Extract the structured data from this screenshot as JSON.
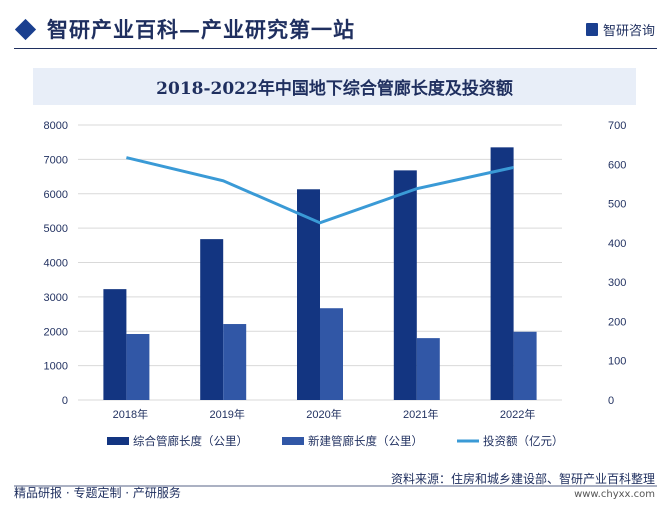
{
  "header": {
    "title": "智研产业百科—产业研究第一站",
    "logo_text": "智研咨询"
  },
  "footer": {
    "left": "精品研报 · 专题定制 · 产研服务",
    "source": "资料来源：住房和城乡建设部、智研产业百科整理",
    "url": "www.chyxx.com"
  },
  "colors": {
    "dark_bar": "#133581",
    "light_bar": "#3157a6",
    "line": "#3a9ad6"
  },
  "chart_data": {
    "type": "bar+line",
    "title": "2018-2022年中国地下综合管廊长度及投资额",
    "categories": [
      "2018年",
      "2019年",
      "2020年",
      "2021年",
      "2022年"
    ],
    "y_left": {
      "range": [
        0,
        8000
      ],
      "ticks": [
        "0",
        "1000",
        "2000",
        "3000",
        "4000",
        "5000",
        "6000",
        "7000",
        "8000"
      ]
    },
    "y_right": {
      "range": [
        0,
        700
      ],
      "ticks": [
        "0",
        "100",
        "200",
        "300",
        "400",
        "500",
        "600",
        "700"
      ]
    },
    "grid": true,
    "legend": "bottom",
    "series": [
      {
        "name": "综合管廊长度（公里）",
        "type": "bar",
        "axis": "left",
        "values": [
          3225,
          4680,
          6130,
          6680,
          7350
        ]
      },
      {
        "name": "新建管廊长度（公里）",
        "type": "bar",
        "axis": "left",
        "values": [
          1920,
          2210,
          2670,
          1800,
          1985
        ]
      },
      {
        "name": "投资额（亿元）",
        "type": "line",
        "axis": "right",
        "values": [
          617,
          558,
          451,
          538,
          592
        ]
      }
    ]
  }
}
